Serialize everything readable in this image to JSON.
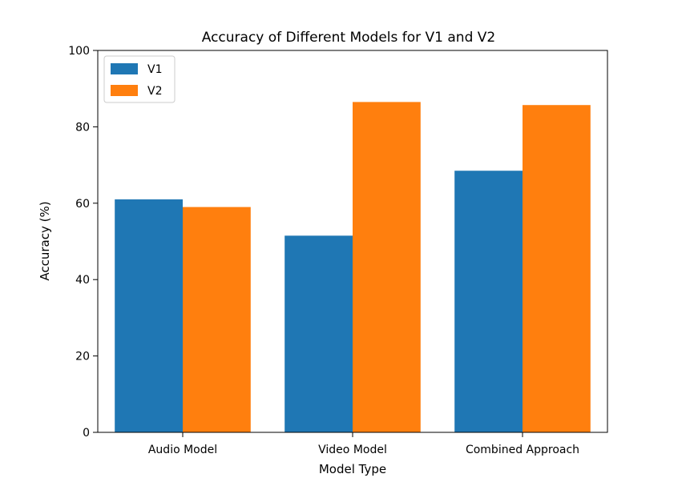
{
  "chart_data": {
    "type": "bar",
    "title": "Accuracy of Different Models for V1 and V2",
    "xlabel": "Model Type",
    "ylabel": "Accuracy (%)",
    "categories": [
      "Audio Model",
      "Video Model",
      "Combined Approach"
    ],
    "series": [
      {
        "name": "V1",
        "color": "#1f77b4",
        "values": [
          61.0,
          51.5,
          68.5
        ]
      },
      {
        "name": "V2",
        "color": "#ff7f0e",
        "values": [
          59.0,
          86.5,
          85.7
        ]
      }
    ],
    "ylim": [
      0,
      100
    ],
    "yticks": [
      0,
      20,
      40,
      60,
      80,
      100
    ],
    "grid": false,
    "legend": "top-left"
  }
}
